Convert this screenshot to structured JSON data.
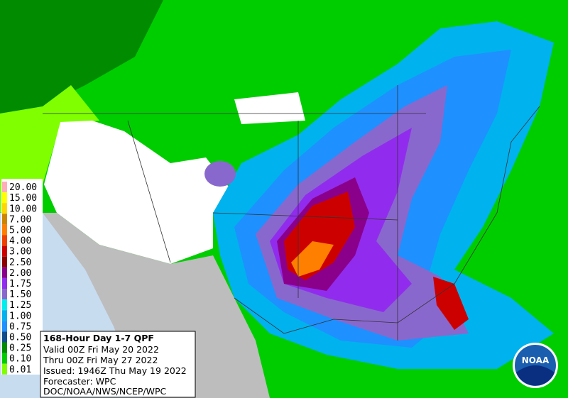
{
  "legend": {
    "labels": [
      "20.00",
      "15.00",
      "10.00",
      "7.00",
      "5.00",
      "4.00",
      "3.00",
      "2.50",
      "2.00",
      "1.75",
      "1.50",
      "1.25",
      "1.00",
      "0.75",
      "0.50",
      "0.25",
      "0.10",
      "0.01"
    ]
  },
  "info": {
    "title": "168-Hour Day 1-7 QPF",
    "lines": [
      "Valid 00Z Fri May 20 2022",
      "Thru 00Z Fri May 27 2022",
      "Issued: 1946Z Thu May 19 2022",
      "Forecaster: WPC",
      "DOC/NOAA/NWS/NCEP/WPC"
    ]
  },
  "logo": "NOAA"
}
